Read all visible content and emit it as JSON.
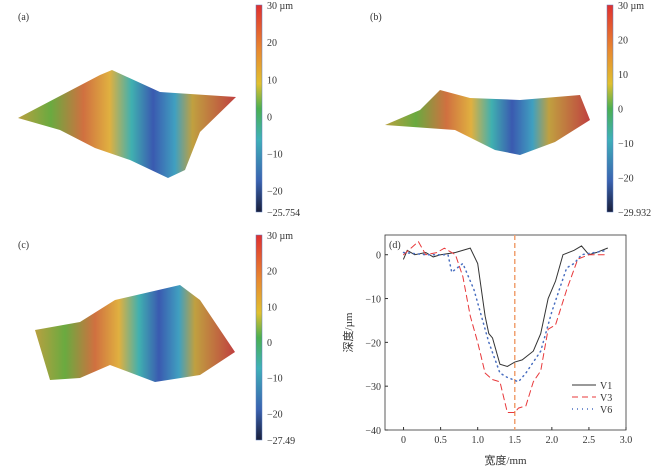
{
  "panels": [
    {
      "label": "(a)",
      "colorbar_ticks": [
        "30 µm",
        "20",
        "10",
        "0",
        "−10",
        "−20",
        "−25.754"
      ],
      "min": -25.754,
      "max": 30
    },
    {
      "label": "(b)",
      "colorbar_ticks": [
        "30 µm",
        "20",
        "10",
        "0",
        "−10",
        "−20",
        "−29.932"
      ],
      "min": -29.932,
      "max": 30
    },
    {
      "label": "(c)",
      "colorbar_ticks": [
        "30 µm",
        "20",
        "10",
        "0",
        "−10",
        "−20",
        "−27.49"
      ],
      "min": -27.49,
      "max": 30
    }
  ],
  "colorbar_tick_values": [
    30,
    20,
    10,
    0,
    -10,
    -20
  ],
  "colors": {
    "V1": "#333333",
    "V3": "#e8393b",
    "V6": "#4a6fc0",
    "center_line": "#f0a070"
  },
  "chart_data": {
    "type": "line",
    "panel_label": "(d)",
    "xlabel": "宽度/mm",
    "ylabel": "深度/µm",
    "xlim": [
      -0.25,
      3.0
    ],
    "ylim": [
      -40,
      4.5
    ],
    "xticks": [
      0,
      0.5,
      1.0,
      1.5,
      2.0,
      2.5,
      3.0
    ],
    "xtick_labels": [
      "0",
      "0.5",
      "1.0",
      "1.5",
      "2.0",
      "2.5",
      "3.0"
    ],
    "yticks": [
      0,
      -10,
      -20,
      -30,
      -40
    ],
    "ytick_labels": [
      "0",
      "−10",
      "−20",
      "−30",
      "−40"
    ],
    "vline_x": 1.5,
    "legend_position": "bottom-right",
    "series": [
      {
        "name": "V1",
        "style": "solid",
        "x": [
          0,
          0.05,
          0.15,
          0.3,
          0.4,
          0.5,
          0.7,
          0.9,
          1.0,
          1.05,
          1.1,
          1.15,
          1.2,
          1.3,
          1.4,
          1.5,
          1.6,
          1.75,
          1.85,
          1.95,
          2.05,
          2.15,
          2.3,
          2.4,
          2.5,
          2.6,
          2.75
        ],
        "y": [
          -1,
          1,
          0,
          0.5,
          -0.5,
          0,
          0.5,
          1.5,
          -2,
          -8,
          -14,
          -18,
          -19,
          -25,
          -25.5,
          -24.5,
          -24,
          -22,
          -18,
          -10,
          -6,
          0,
          1,
          2,
          0,
          0.5,
          1.5
        ]
      },
      {
        "name": "V3",
        "style": "dashed",
        "x": [
          0,
          0.2,
          0.3,
          0.45,
          0.55,
          0.7,
          0.8,
          0.9,
          1.0,
          1.1,
          1.2,
          1.3,
          1.4,
          1.5,
          1.55,
          1.65,
          1.75,
          1.85,
          1.95,
          2.05,
          2.2,
          2.35,
          2.5,
          2.75
        ],
        "y": [
          0,
          3,
          0,
          0.5,
          1.5,
          0,
          -5,
          -14,
          -20,
          -27,
          -28.5,
          -29,
          -36,
          -36,
          -35,
          -34.5,
          -29,
          -26.5,
          -17,
          -16,
          -8,
          -1,
          0,
          0
        ]
      },
      {
        "name": "V6",
        "style": "dotted",
        "x": [
          0,
          0.3,
          0.6,
          0.65,
          0.8,
          0.95,
          1.05,
          1.15,
          1.3,
          1.4,
          1.55,
          1.65,
          1.85,
          2.0,
          2.1,
          2.2,
          2.3,
          2.4,
          2.75
        ],
        "y": [
          0.5,
          0,
          0,
          -4,
          -2,
          -8,
          -14,
          -20,
          -27,
          -28,
          -29,
          -27,
          -22,
          -13,
          -8,
          -3,
          -2,
          0,
          1
        ]
      }
    ]
  }
}
